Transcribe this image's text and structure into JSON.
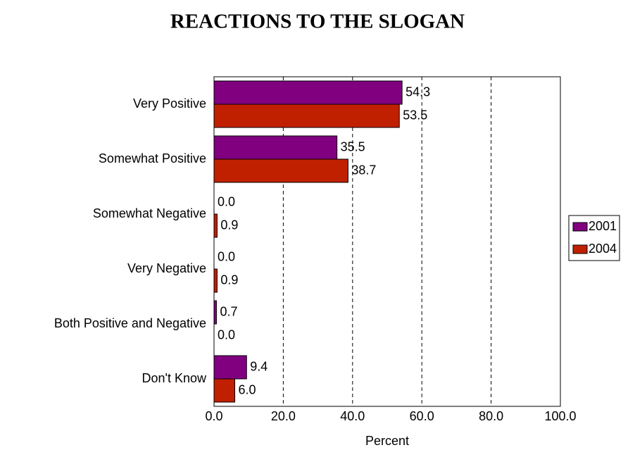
{
  "chart_data": {
    "type": "hbar",
    "title": "REACTIONS TO THE SLOGAN",
    "x_label": "Percent",
    "categories": [
      "Very Positive",
      "Somewhat Positive",
      "Somewhat Negative",
      "Very Negative",
      "Both Positive and Negative",
      "Don't Know"
    ],
    "series": [
      {
        "name": "2001",
        "color": "#800080",
        "values": [
          54.3,
          35.5,
          0,
          0,
          0.7,
          9.4
        ],
        "value_labels": [
          "54.3",
          "35.5",
          "0.0",
          "0.0",
          "0.7",
          "9.4"
        ]
      },
      {
        "name": "2004",
        "color": "#c02000",
        "values": [
          53.5,
          38.7,
          0.9,
          0.9,
          0,
          6
        ],
        "value_labels": [
          "53.5",
          "38.7",
          "0.9",
          "0.9",
          "0.0",
          "6.0"
        ]
      }
    ],
    "xlim": [
      0,
      100
    ],
    "xticks": [
      {
        "value": 0,
        "label": "0.0"
      },
      {
        "value": 20,
        "label": "20.0"
      },
      {
        "value": 40,
        "label": "40.0"
      },
      {
        "value": 60,
        "label": "60.0"
      },
      {
        "value": 80,
        "label": "80.0"
      },
      {
        "value": 100,
        "label": "100.0"
      }
    ],
    "grid": true,
    "legend": "right"
  }
}
